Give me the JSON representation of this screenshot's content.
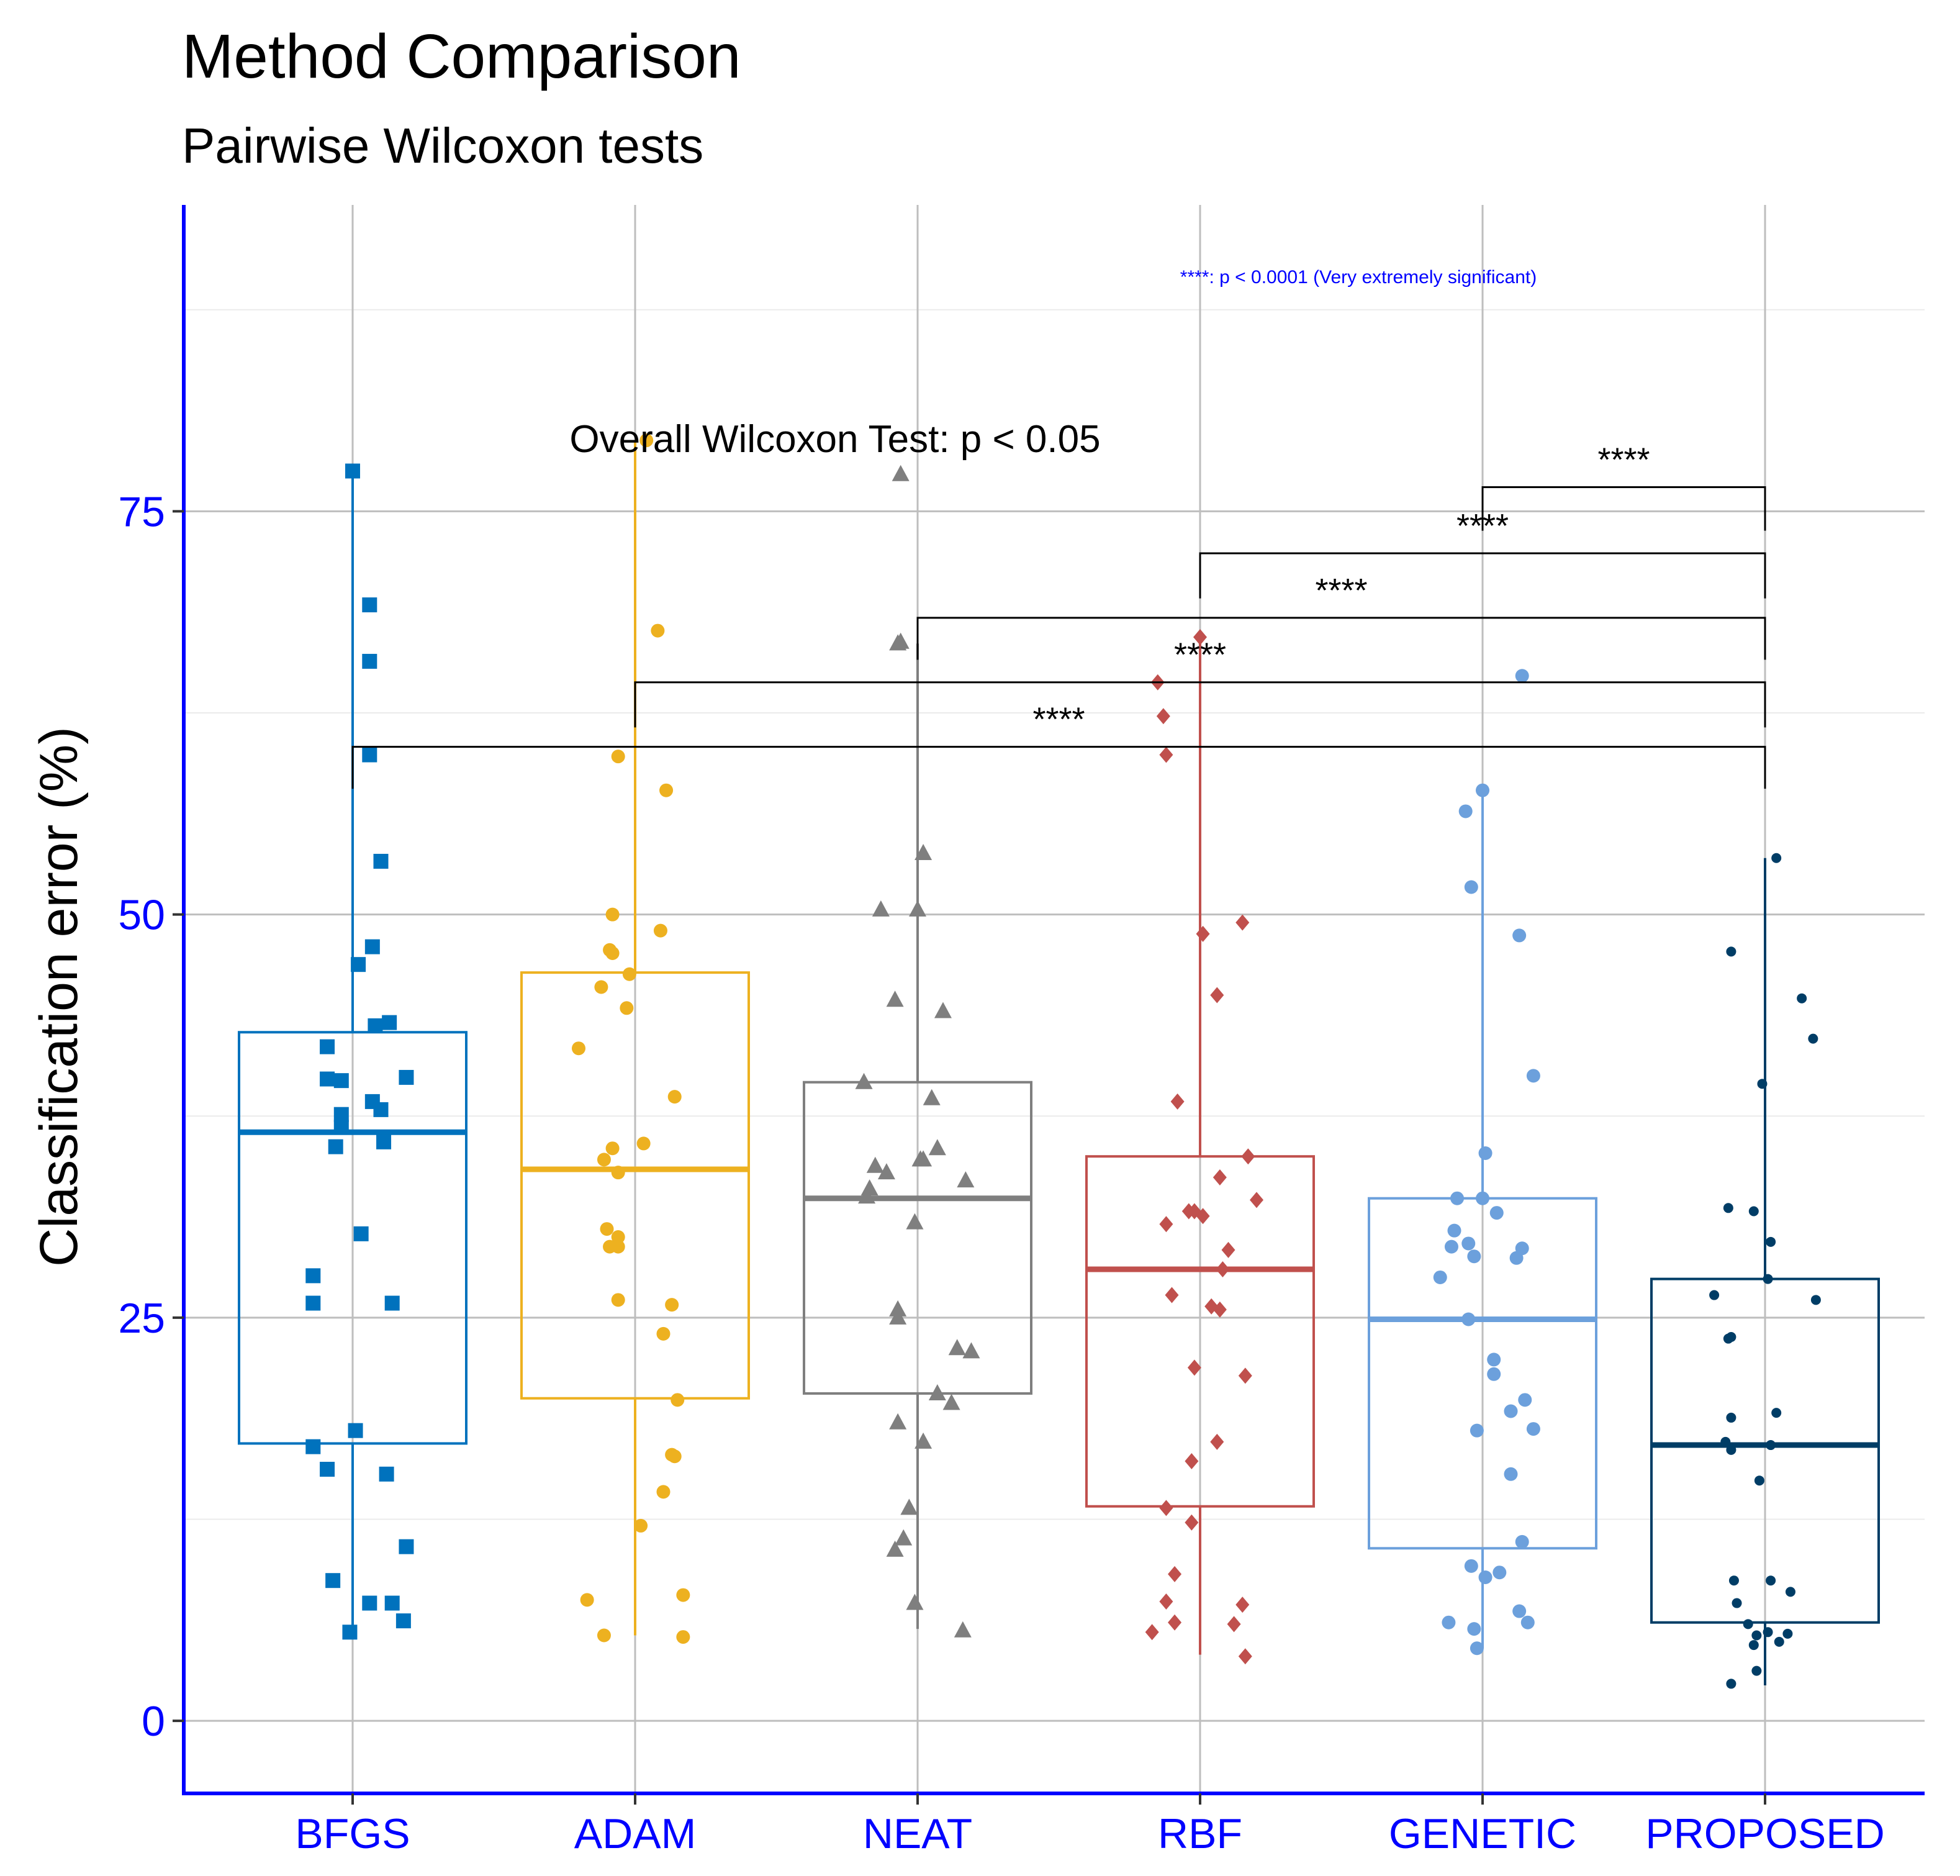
{
  "chart_data": {
    "type": "box",
    "title": "Method Comparison",
    "subtitle": "Pairwise Wilcoxon tests",
    "ylabel": "Classification error (%)",
    "xlabel": "",
    "ylim": [
      -4.5,
      94
    ],
    "yticks": [
      0,
      25,
      50,
      75
    ],
    "grid": true,
    "overall_test": "Overall Wilcoxon Test: p < 0.05",
    "significance_note": "****: p < 0.0001 (Very extremely significant)",
    "categories": [
      "BFGS",
      "ADAM",
      "NEAT",
      "RBF",
      "GENETIC",
      "PROPOSED"
    ],
    "colors": [
      "#0072bd",
      "#edb120",
      "#7f7f7f",
      "#c0504d",
      "#6ca0dc",
      "#003d66"
    ],
    "marker_shapes": [
      "square",
      "circle",
      "triangle",
      "diamond",
      "circle",
      "small-circle"
    ],
    "boxes": [
      {
        "name": "BFGS",
        "lower_whisker": 5.5,
        "q1": 17.2,
        "median": 36.5,
        "q3": 42.7,
        "upper_whisker": 77.5
      },
      {
        "name": "ADAM",
        "lower_whisker": 5.3,
        "q1": 20.0,
        "median": 34.2,
        "q3": 46.4,
        "upper_whisker": 79.4
      },
      {
        "name": "NEAT",
        "lower_whisker": 5.7,
        "q1": 20.3,
        "median": 32.4,
        "q3": 39.6,
        "upper_whisker": 66.8
      },
      {
        "name": "RBF",
        "lower_whisker": 4.1,
        "q1": 13.3,
        "median": 28.0,
        "q3": 35.0,
        "upper_whisker": 67.2
      },
      {
        "name": "GENETIC",
        "lower_whisker": 4.5,
        "q1": 10.7,
        "median": 24.9,
        "q3": 32.4,
        "upper_whisker": 57.7
      },
      {
        "name": "PROPOSED",
        "lower_whisker": 2.2,
        "q1": 6.1,
        "median": 17.1,
        "q3": 27.4,
        "upper_whisker": 53.5
      }
    ],
    "points": [
      [
        [
          0,
          77.5
        ],
        [
          0.06,
          69.2
        ],
        [
          0.06,
          65.7
        ],
        [
          0.06,
          59.9
        ],
        [
          0.1,
          53.3
        ],
        [
          0.07,
          48.0
        ],
        [
          0.02,
          46.9
        ],
        [
          0.08,
          43.1
        ],
        [
          0.13,
          43.3
        ],
        [
          -0.09,
          41.8
        ],
        [
          -0.09,
          39.8
        ],
        [
          -0.04,
          39.7
        ],
        [
          0.19,
          39.9
        ],
        [
          0.07,
          38.4
        ],
        [
          -0.04,
          37.6
        ],
        [
          0.1,
          37.9
        ],
        [
          -0.04,
          36.8
        ],
        [
          -0.06,
          35.6
        ],
        [
          0.11,
          35.9
        ],
        [
          0.03,
          30.2
        ],
        [
          -0.14,
          27.6
        ],
        [
          -0.14,
          25.9
        ],
        [
          0.14,
          25.9
        ],
        [
          -0.14,
          17.0
        ],
        [
          0.01,
          18.0
        ],
        [
          -0.09,
          15.6
        ],
        [
          0.12,
          15.3
        ],
        [
          -0.07,
          8.7
        ],
        [
          0.19,
          10.8
        ],
        [
          0.06,
          7.3
        ],
        [
          0.14,
          7.3
        ],
        [
          -0.01,
          5.5
        ],
        [
          0.18,
          6.2
        ]
      ],
      [
        [
          0.04,
          79.4
        ],
        [
          0.08,
          67.6
        ],
        [
          -0.06,
          59.8
        ],
        [
          0.11,
          57.7
        ],
        [
          -0.08,
          50.0
        ],
        [
          -0.09,
          47.8
        ],
        [
          -0.08,
          47.6
        ],
        [
          -0.02,
          46.3
        ],
        [
          -0.12,
          45.5
        ],
        [
          0.09,
          49.0
        ],
        [
          -0.03,
          44.2
        ],
        [
          -0.2,
          41.7
        ],
        [
          0.14,
          38.7
        ],
        [
          0.03,
          35.8
        ],
        [
          -0.11,
          34.8
        ],
        [
          -0.08,
          35.5
        ],
        [
          -0.06,
          34.0
        ],
        [
          -0.1,
          30.5
        ],
        [
          -0.09,
          29.4
        ],
        [
          -0.06,
          30.0
        ],
        [
          -0.06,
          29.4
        ],
        [
          -0.06,
          26.1
        ],
        [
          0.13,
          25.8
        ],
        [
          0.1,
          24.0
        ],
        [
          0.15,
          19.9
        ],
        [
          0.13,
          16.5
        ],
        [
          0.14,
          16.4
        ],
        [
          0.1,
          14.2
        ],
        [
          0.02,
          12.1
        ],
        [
          0.17,
          7.8
        ],
        [
          -0.17,
          7.5
        ],
        [
          -0.11,
          5.3
        ],
        [
          0.17,
          5.2
        ]
      ],
      [
        [
          -0.06,
          77.3
        ],
        [
          -0.07,
          66.8
        ],
        [
          -0.06,
          66.9
        ],
        [
          0.02,
          53.8
        ],
        [
          -0.13,
          50.3
        ],
        [
          0,
          50.3
        ],
        [
          -0.08,
          44.7
        ],
        [
          0.09,
          44.0
        ],
        [
          -0.19,
          39.6
        ],
        [
          0.05,
          38.6
        ],
        [
          -0.15,
          34.4
        ],
        [
          -0.11,
          34.0
        ],
        [
          -0.17,
          33.0
        ],
        [
          0.01,
          34.8
        ],
        [
          0.07,
          35.5
        ],
        [
          0.17,
          33.5
        ],
        [
          0.02,
          34.8
        ],
        [
          -0.18,
          32.5
        ],
        [
          -0.01,
          30.9
        ],
        [
          -0.07,
          25.5
        ],
        [
          -0.07,
          25.0
        ],
        [
          0.14,
          23.1
        ],
        [
          0.19,
          22.9
        ],
        [
          0.07,
          20.3
        ],
        [
          0.12,
          19.7
        ],
        [
          -0.07,
          18.5
        ],
        [
          0.02,
          17.3
        ],
        [
          -0.03,
          13.2
        ],
        [
          -0.05,
          11.3
        ],
        [
          -0.08,
          10.6
        ],
        [
          -0.01,
          7.3
        ],
        [
          0.16,
          5.6
        ]
      ],
      [
        [
          -0.15,
          64.4
        ],
        [
          -0.13,
          62.3
        ],
        [
          -0.12,
          59.9
        ],
        [
          0,
          67.2
        ],
        [
          0.15,
          49.5
        ],
        [
          0.01,
          48.8
        ],
        [
          0.06,
          45.0
        ],
        [
          -0.08,
          38.4
        ],
        [
          0.17,
          35.0
        ],
        [
          0.07,
          33.7
        ],
        [
          0.01,
          31.3
        ],
        [
          -0.12,
          30.8
        ],
        [
          0.2,
          32.3
        ],
        [
          -0.04,
          31.6
        ],
        [
          -0.02,
          31.6
        ],
        [
          0.1,
          29.2
        ],
        [
          0.08,
          28.0
        ],
        [
          -0.1,
          26.4
        ],
        [
          0.04,
          25.7
        ],
        [
          0.07,
          25.5
        ],
        [
          0.16,
          21.4
        ],
        [
          -0.02,
          21.9
        ],
        [
          0.06,
          17.3
        ],
        [
          -0.03,
          16.1
        ],
        [
          -0.12,
          13.2
        ],
        [
          -0.03,
          12.3
        ],
        [
          -0.09,
          9.1
        ],
        [
          -0.12,
          7.4
        ],
        [
          0.15,
          7.2
        ],
        [
          -0.09,
          6.1
        ],
        [
          -0.17,
          5.5
        ],
        [
          0.12,
          6.0
        ],
        [
          0.16,
          4.0
        ]
      ],
      [
        [
          0.14,
          64.8
        ],
        [
          0,
          57.7
        ],
        [
          -0.06,
          56.4
        ],
        [
          -0.04,
          51.7
        ],
        [
          0.13,
          48.7
        ],
        [
          0.18,
          40.0
        ],
        [
          0.01,
          35.2
        ],
        [
          -0.09,
          32.4
        ],
        [
          0,
          32.4
        ],
        [
          -0.1,
          30.4
        ],
        [
          0.05,
          31.5
        ],
        [
          -0.11,
          29.4
        ],
        [
          -0.05,
          29.6
        ],
        [
          -0.03,
          28.8
        ],
        [
          0.14,
          29.3
        ],
        [
          0.12,
          28.7
        ],
        [
          -0.15,
          27.5
        ],
        [
          -0.05,
          24.9
        ],
        [
          0.04,
          22.4
        ],
        [
          0.04,
          21.5
        ],
        [
          0.15,
          19.9
        ],
        [
          0.1,
          19.2
        ],
        [
          0.18,
          18.1
        ],
        [
          -0.02,
          18.0
        ],
        [
          0.1,
          15.3
        ],
        [
          0.14,
          11.1
        ],
        [
          -0.04,
          9.6
        ],
        [
          0.01,
          8.9
        ],
        [
          0.06,
          9.2
        ],
        [
          0.13,
          6.8
        ],
        [
          -0.12,
          6.1
        ],
        [
          -0.03,
          5.7
        ],
        [
          0.16,
          6.1
        ],
        [
          -0.02,
          4.5
        ]
      ],
      [
        [
          0.04,
          53.5
        ],
        [
          -0.12,
          47.7
        ],
        [
          0.13,
          44.8
        ],
        [
          0.17,
          42.3
        ],
        [
          -0.01,
          39.5
        ],
        [
          -0.13,
          31.8
        ],
        [
          -0.04,
          31.6
        ],
        [
          0.02,
          29.7
        ],
        [
          0.01,
          27.4
        ],
        [
          -0.18,
          26.4
        ],
        [
          0.18,
          26.1
        ],
        [
          -0.12,
          23.8
        ],
        [
          -0.13,
          23.7
        ],
        [
          -0.12,
          18.8
        ],
        [
          0.04,
          19.1
        ],
        [
          -0.14,
          17.3
        ],
        [
          -0.12,
          16.8
        ],
        [
          0.02,
          17.1
        ],
        [
          -0.02,
          14.9
        ],
        [
          0.02,
          8.7
        ],
        [
          -0.11,
          8.7
        ],
        [
          0.09,
          8.0
        ],
        [
          -0.1,
          7.3
        ],
        [
          -0.06,
          6.0
        ],
        [
          -0.03,
          5.3
        ],
        [
          0.01,
          5.5
        ],
        [
          0.05,
          4.9
        ],
        [
          0.08,
          5.4
        ],
        [
          -0.04,
          4.7
        ],
        [
          -0.03,
          3.1
        ],
        [
          -0.12,
          2.3
        ]
      ]
    ],
    "comparisons": [
      {
        "from": "PROPOSED",
        "to": "GENETIC",
        "label": "****",
        "y": 76.5,
        "left_drop_y": 73.8,
        "right_drop_y": 73.8
      },
      {
        "from": "PROPOSED",
        "to": "RBF",
        "label": "****",
        "y": 72.4,
        "left_drop_y": 69.6,
        "right_drop_y": 69.6
      },
      {
        "from": "PROPOSED",
        "to": "NEAT",
        "label": "****",
        "y": 68.4,
        "left_drop_y": 65.8,
        "right_drop_y": 65.8
      },
      {
        "from": "PROPOSED",
        "to": "ADAM",
        "label": "****",
        "y": 64.4,
        "left_drop_y": 61.6,
        "right_drop_y": 61.6
      },
      {
        "from": "PROPOSED",
        "to": "BFGS",
        "label": "****",
        "y": 60.4,
        "left_drop_y": 57.8,
        "right_drop_y": 57.8
      }
    ]
  },
  "theme": {
    "axis_color": "#0000ff",
    "tick_label_color": "#0000ff",
    "grid_major": "#bebebe",
    "grid_minor": "#ebebeb",
    "note_color": "#0000ff"
  }
}
